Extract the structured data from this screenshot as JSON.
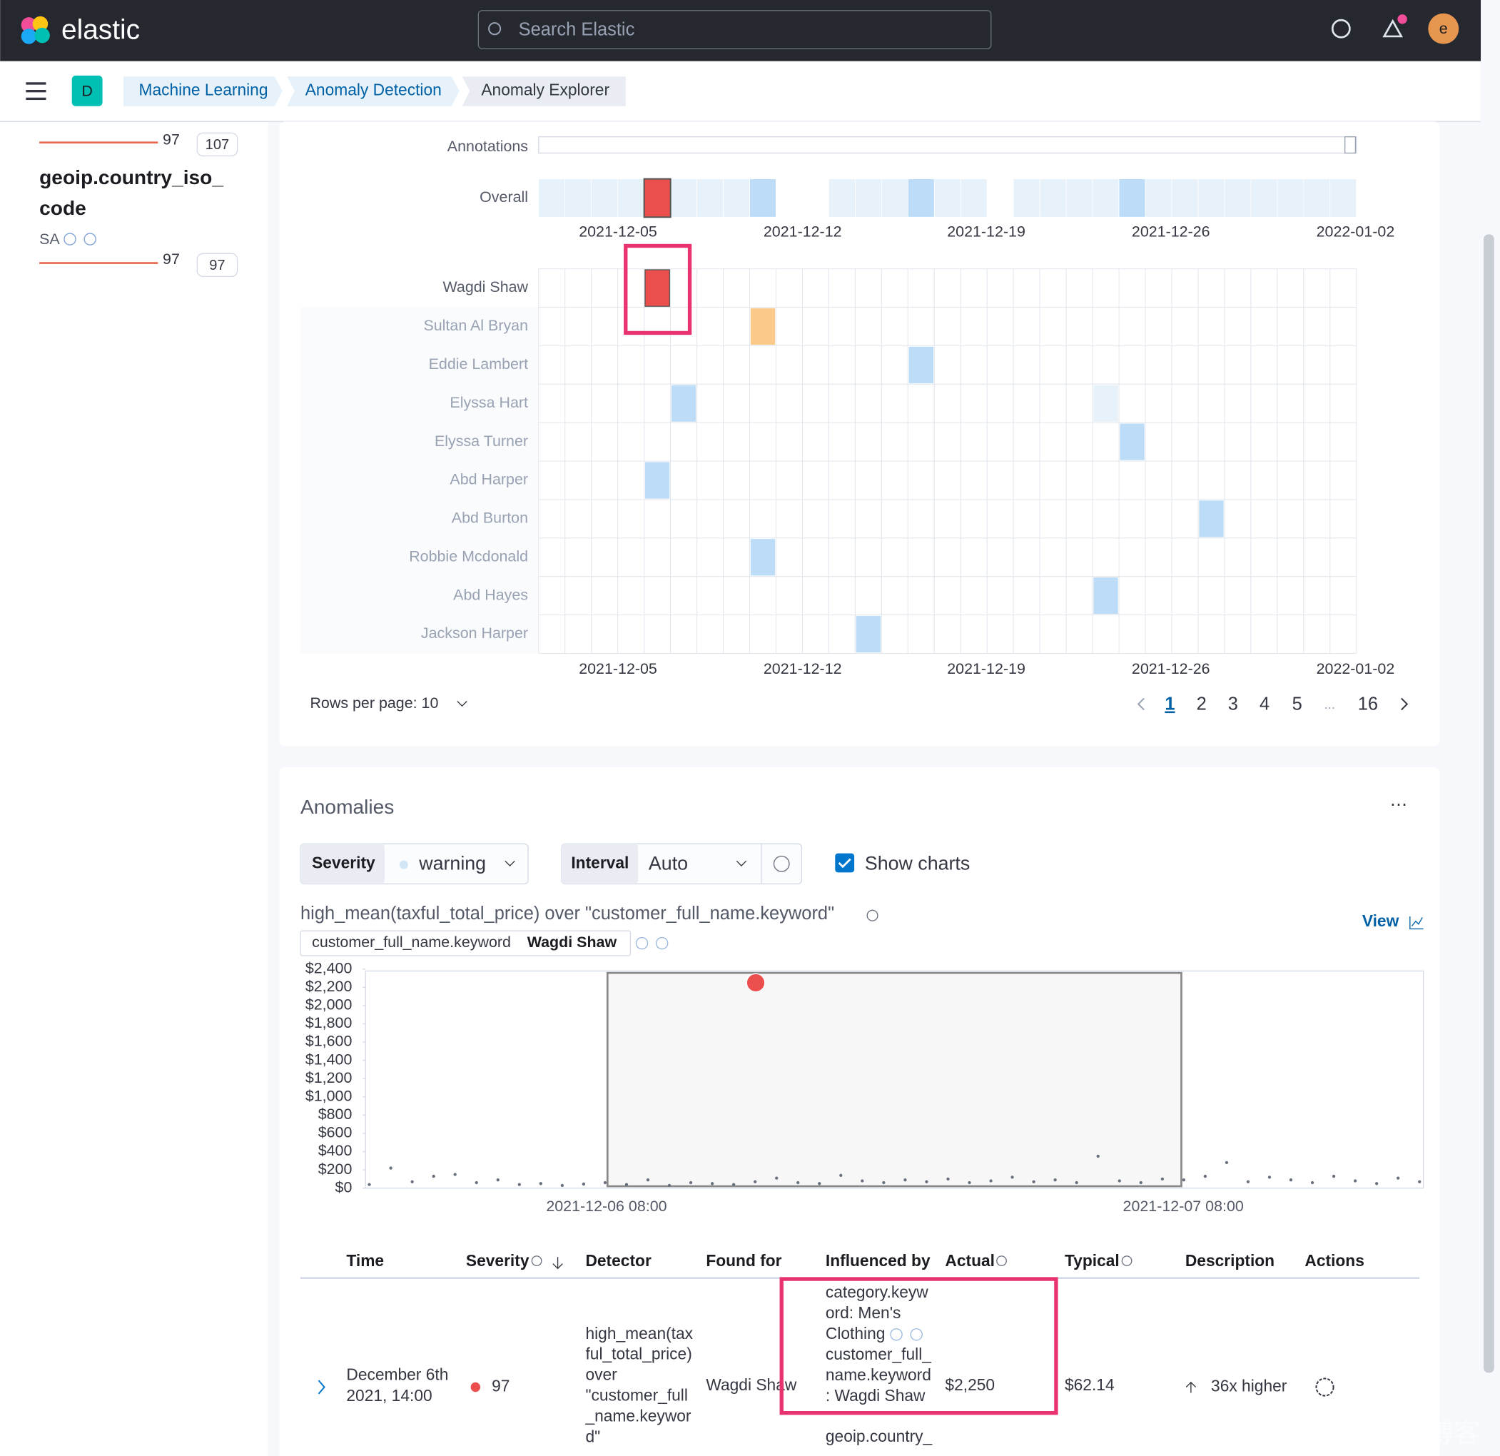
{
  "header": {
    "logo": "elastic",
    "search_placeholder": "Search Elastic",
    "avatar": "e"
  },
  "breadcrumbs": {
    "space": "D",
    "items": [
      "Machine Learning",
      "Anomaly Detection",
      "Anomaly Explorer"
    ]
  },
  "sidebar": {
    "top_score": 97,
    "top_count": 107,
    "field_name": [
      "geoip.country_iso_",
      "code"
    ],
    "value": "SA",
    "score": 97,
    "count": 97
  },
  "swimlane": {
    "annotations_label": "Annotations",
    "overall_label": "Overall",
    "dates": [
      "2021-12-05",
      "2021-12-12",
      "2021-12-19",
      "2021-12-26",
      "2022-01-02"
    ],
    "rows": [
      "Wagdi Shaw",
      "Sultan Al Bryan",
      "Eddie Lambert",
      "Elyssa Hart",
      "Elyssa Turner",
      "Abd Harper",
      "Abd Burton",
      "Robbie Mcdonald",
      "Abd Hayes",
      "Jackson Harper"
    ],
    "rows_per_page": "Rows per page: 10",
    "pages": [
      1,
      2,
      3,
      4,
      5,
      "...",
      16
    ]
  },
  "anomalies": {
    "title": "Anomalies",
    "severity_label": "Severity",
    "severity_value": "warning",
    "interval_label": "Interval",
    "interval_value": "Auto",
    "show_charts": "Show charts",
    "chart": {
      "title": "high_mean(taxful_total_price) over \"customer_full_name.keyword\"",
      "view": "View",
      "entity_field": "customer_full_name.keyword",
      "entity_value": "Wagdi Shaw",
      "ylim": [
        0,
        2400
      ],
      "yticks": [
        {
          "value": 0,
          "label": "$0"
        },
        {
          "value": 200,
          "label": "$200"
        },
        {
          "value": 400,
          "label": "$400"
        },
        {
          "value": 600,
          "label": "$600"
        },
        {
          "value": 800,
          "label": "$800"
        },
        {
          "value": 1000,
          "label": "$1,000"
        },
        {
          "value": 1200,
          "label": "$1,200"
        },
        {
          "value": 1400,
          "label": "$1,400"
        },
        {
          "value": 1600,
          "label": "$1,600"
        },
        {
          "value": 1800,
          "label": "$1,800"
        },
        {
          "value": 2000,
          "label": "$2,000"
        },
        {
          "value": 2200,
          "label": "$2,200"
        },
        {
          "value": 2400,
          "label": "$2,400"
        }
      ],
      "xticks": [
        "2021-12-06 08:00",
        "2021-12-07 08:00"
      ],
      "anomaly_value": 2250,
      "values": [
        40,
        220,
        70,
        130,
        150,
        60,
        90,
        40,
        50,
        30,
        45,
        60,
        40,
        90,
        30,
        60,
        50,
        40,
        70,
        110,
        60,
        50,
        140,
        80,
        60,
        90,
        70,
        100,
        60,
        80,
        120,
        70,
        90,
        60,
        350,
        80,
        60,
        100,
        90,
        130,
        280,
        70,
        120,
        90,
        60,
        130,
        80,
        50,
        110,
        70
      ]
    },
    "table": {
      "columns": [
        "Time",
        "Severity",
        "Detector",
        "Found for",
        "Influenced by",
        "Actual",
        "Typical",
        "Description",
        "Actions"
      ],
      "row": {
        "time": [
          "December 6th",
          "2021, 14:00"
        ],
        "severity": 97,
        "detector": [
          "high_mean(tax",
          "ful_total_price)",
          "over",
          "\"customer_full",
          "_name.keywor",
          "d\""
        ],
        "found_for": "Wagdi Shaw",
        "influenced_by": [
          "category.keyw",
          "ord: Men's",
          "Clothing",
          "customer_full_",
          "name.keyword",
          ": Wagdi Shaw",
          "geoip.country_"
        ],
        "actual": "$2,250",
        "typical": "$62.14",
        "description": "36x higher"
      }
    }
  },
  "watermark": "CSDN @Elastic 中国社区官方博客"
}
